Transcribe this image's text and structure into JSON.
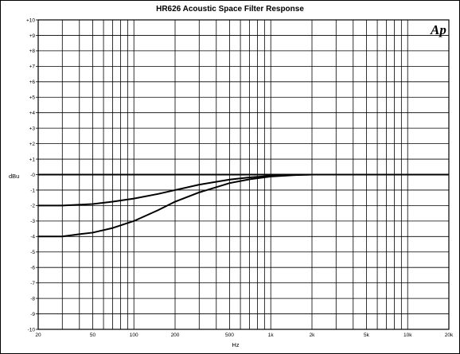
{
  "chart_data": {
    "type": "line",
    "title": "HR626 Acoustic Space Filter Response",
    "xlabel": "Hz",
    "ylabel": "dBu",
    "xscale": "log",
    "xlim": [
      20,
      20000
    ],
    "ylim": [
      -10,
      10
    ],
    "grid": true,
    "logo": "Ap",
    "x_ticks": [
      {
        "value": 20,
        "label": "20"
      },
      {
        "value": 50,
        "label": "50"
      },
      {
        "value": 100,
        "label": "100"
      },
      {
        "value": 200,
        "label": "200"
      },
      {
        "value": 500,
        "label": "500"
      },
      {
        "value": 1000,
        "label": "1k"
      },
      {
        "value": 2000,
        "label": "2k"
      },
      {
        "value": 5000,
        "label": "5k"
      },
      {
        "value": 10000,
        "label": "10k"
      },
      {
        "value": 20000,
        "label": "20k"
      }
    ],
    "y_ticks": [
      {
        "value": 10,
        "label": "+10"
      },
      {
        "value": 9,
        "label": "+9"
      },
      {
        "value": 8,
        "label": "+8"
      },
      {
        "value": 7,
        "label": "+7"
      },
      {
        "value": 6,
        "label": "+6"
      },
      {
        "value": 5,
        "label": "+5"
      },
      {
        "value": 4,
        "label": "+4"
      },
      {
        "value": 3,
        "label": "+3"
      },
      {
        "value": 2,
        "label": "+2"
      },
      {
        "value": 1,
        "label": "+1"
      },
      {
        "value": 0,
        "label": "-0"
      },
      {
        "value": -1,
        "label": "-1"
      },
      {
        "value": -2,
        "label": "-2"
      },
      {
        "value": -3,
        "label": "-3"
      },
      {
        "value": -4,
        "label": "-4"
      },
      {
        "value": -5,
        "label": "-5"
      },
      {
        "value": -6,
        "label": "-6"
      },
      {
        "value": -7,
        "label": "-7"
      },
      {
        "value": -8,
        "label": "-8"
      },
      {
        "value": -9,
        "label": "-9"
      },
      {
        "value": -10,
        "label": "-10"
      }
    ],
    "series": [
      {
        "x": [
          20,
          30,
          50,
          70,
          100,
          150,
          200,
          300,
          500,
          700,
          1000,
          2000,
          5000,
          10000,
          20000
        ],
        "y": [
          0,
          0,
          0,
          0,
          0,
          0,
          0,
          0,
          0,
          0,
          0,
          0,
          0,
          0,
          0
        ]
      },
      {
        "x": [
          20,
          30,
          50,
          70,
          100,
          150,
          200,
          300,
          500,
          700,
          1000,
          1500,
          2000,
          5000,
          10000,
          20000
        ],
        "y": [
          -2.0,
          -2.0,
          -1.9,
          -1.75,
          -1.55,
          -1.25,
          -1.0,
          -0.65,
          -0.32,
          -0.18,
          -0.08,
          -0.02,
          0,
          0,
          0,
          0
        ]
      },
      {
        "x": [
          20,
          30,
          40,
          50,
          70,
          100,
          150,
          200,
          300,
          500,
          700,
          1000,
          1500,
          2000,
          5000,
          10000,
          20000
        ],
        "y": [
          -4.0,
          -4.0,
          -3.85,
          -3.75,
          -3.45,
          -3.0,
          -2.3,
          -1.75,
          -1.15,
          -0.55,
          -0.3,
          -0.12,
          -0.03,
          0,
          0,
          0,
          0
        ]
      }
    ]
  }
}
